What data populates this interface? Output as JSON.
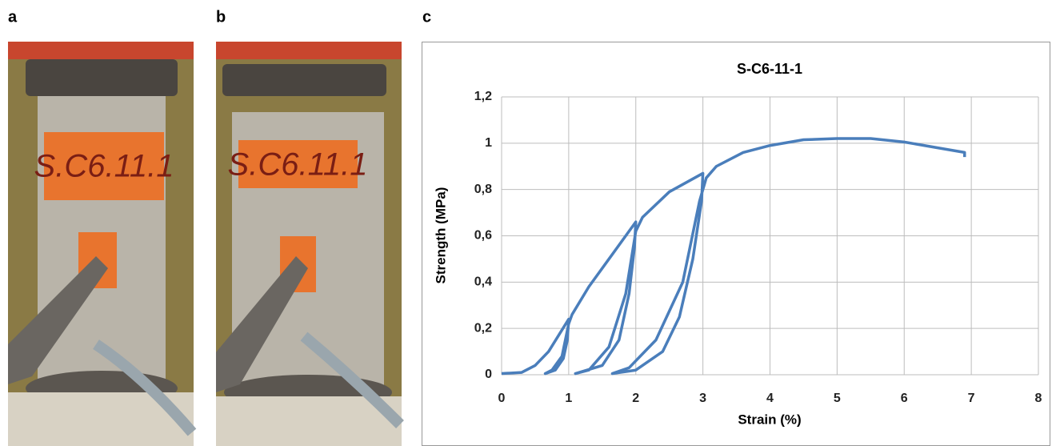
{
  "panels": [
    "a",
    "b",
    "c"
  ],
  "photos": [
    {
      "label": "S.C6.11.1"
    },
    {
      "label": "S.C6.11.1"
    }
  ],
  "chart_data": {
    "type": "line",
    "title": "S-C6-11-1",
    "x_label": "Strain (%)",
    "y_label": "Strength (MPa)",
    "x": [
      0,
      0.3,
      0.5,
      0.7,
      0.85,
      1.0,
      0.98,
      0.92,
      0.8,
      0.65,
      0.75,
      0.9,
      1.0,
      1.05,
      1.3,
      1.6,
      2.0,
      1.98,
      1.9,
      1.75,
      1.5,
      1.1,
      1.3,
      1.6,
      1.85,
      2.0,
      2.1,
      2.5,
      3.0,
      2.98,
      2.85,
      2.65,
      2.4,
      2.0,
      1.65,
      1.9,
      2.3,
      2.7,
      2.95,
      3.05,
      3.2,
      3.6,
      4.0,
      4.5,
      5.0,
      5.5,
      6.0,
      6.5,
      6.9,
      6.9
    ],
    "series": [
      {
        "color": "#4a7ebb",
        "values": [
          0.005,
          0.01,
          0.04,
          0.1,
          0.17,
          0.24,
          0.15,
          0.07,
          0.02,
          0.005,
          0.02,
          0.08,
          0.22,
          0.26,
          0.38,
          0.5,
          0.66,
          0.55,
          0.35,
          0.15,
          0.04,
          0.005,
          0.02,
          0.12,
          0.35,
          0.62,
          0.68,
          0.79,
          0.87,
          0.75,
          0.5,
          0.25,
          0.1,
          0.02,
          0.005,
          0.03,
          0.15,
          0.4,
          0.75,
          0.85,
          0.9,
          0.96,
          0.99,
          1.015,
          1.02,
          1.02,
          1.005,
          0.98,
          0.96,
          0.94
        ]
      }
    ],
    "xlim": [
      0,
      8
    ],
    "ylim": [
      0,
      1.2
    ],
    "xticks": [
      0,
      1,
      2,
      3,
      4,
      5,
      6,
      7,
      8
    ],
    "yticks": [
      0,
      {
        "value": 0.2,
        "label": "0,2"
      },
      {
        "value": 0.4,
        "label": "0,4"
      },
      {
        "value": 0.6,
        "label": "0,6"
      },
      {
        "value": 0.8,
        "label": "0,8"
      },
      1,
      {
        "value": 1.2,
        "label": "1,2"
      }
    ],
    "grid": true
  }
}
